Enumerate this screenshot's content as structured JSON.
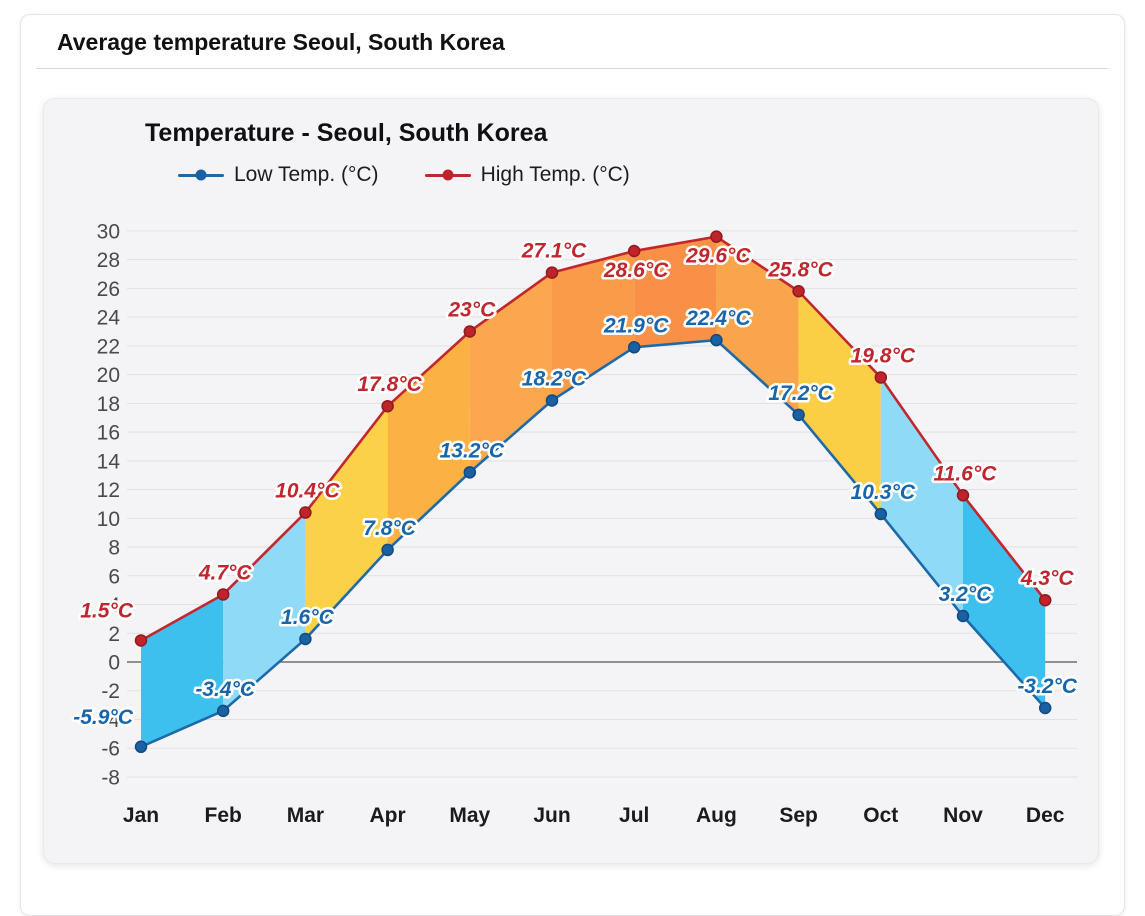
{
  "page": {
    "title": "Average temperature Seoul, South Korea"
  },
  "chart_data": {
    "type": "line",
    "title": "Temperature - Seoul, South Korea",
    "categories": [
      "Jan",
      "Feb",
      "Mar",
      "Apr",
      "May",
      "Jun",
      "Jul",
      "Aug",
      "Sep",
      "Oct",
      "Nov",
      "Dec"
    ],
    "series": [
      {
        "name": "Low Temp. (°C)",
        "values": [
          -5.9,
          -3.4,
          1.6,
          7.8,
          13.2,
          18.2,
          21.9,
          22.4,
          17.2,
          10.3,
          3.2,
          -3.2
        ],
        "labels": [
          "-5.9°C",
          "-3.4°C",
          "1.6°C",
          "7.8°C",
          "13.2°C",
          "18.2°C",
          "21.9°C",
          "22.4°C",
          "17.2°C",
          "10.3°C",
          "3.2°C",
          "-3.2°C"
        ],
        "label_pos": [
          "left",
          "above",
          "above",
          "above",
          "above",
          "above",
          "above",
          "above",
          "above",
          "above",
          "above",
          "above"
        ],
        "line_color": "#1c6aa9",
        "dot_fill": "#1a61a4",
        "dot_stroke": "#12497e",
        "label_color": "#1765ab"
      },
      {
        "name": "High Temp. (°C)",
        "values": [
          1.5,
          4.7,
          10.4,
          17.8,
          23,
          27.1,
          28.6,
          29.6,
          25.8,
          19.8,
          11.6,
          4.3
        ],
        "labels": [
          "1.5°C",
          "4.7°C",
          "10.4°C",
          "17.8°C",
          "23°C",
          "27.1°C",
          "28.6°C",
          "29.6°C",
          "25.8°C",
          "19.8°C",
          "11.6°C",
          "4.3°C"
        ],
        "label_pos": [
          "left",
          "above",
          "above",
          "above",
          "above",
          "above",
          "below",
          "below",
          "above",
          "above",
          "above",
          "above"
        ],
        "line_color": "#c2272e",
        "dot_fill": "#bf242b",
        "dot_stroke": "#8f1a20",
        "label_color": "#c0262d"
      }
    ],
    "band_colors": [
      "#3ec0ee",
      "#8edaf7",
      "#fcd14a",
      "#fbb243",
      "#faa74e",
      "#f99b49",
      "#f89048",
      "#f9a54c",
      "#fbcf45",
      "#8edaf7",
      "#3ec0ee"
    ],
    "ylim": [
      -8,
      30
    ],
    "ytick_step": 2,
    "grid": "horizontal",
    "zero_line_color": "#6f6f74",
    "grid_color": "#e1e1e4",
    "tick_label_color": "#4a4a4e",
    "month_label_color": "#1b1b1f",
    "legend_position": "top-left"
  }
}
